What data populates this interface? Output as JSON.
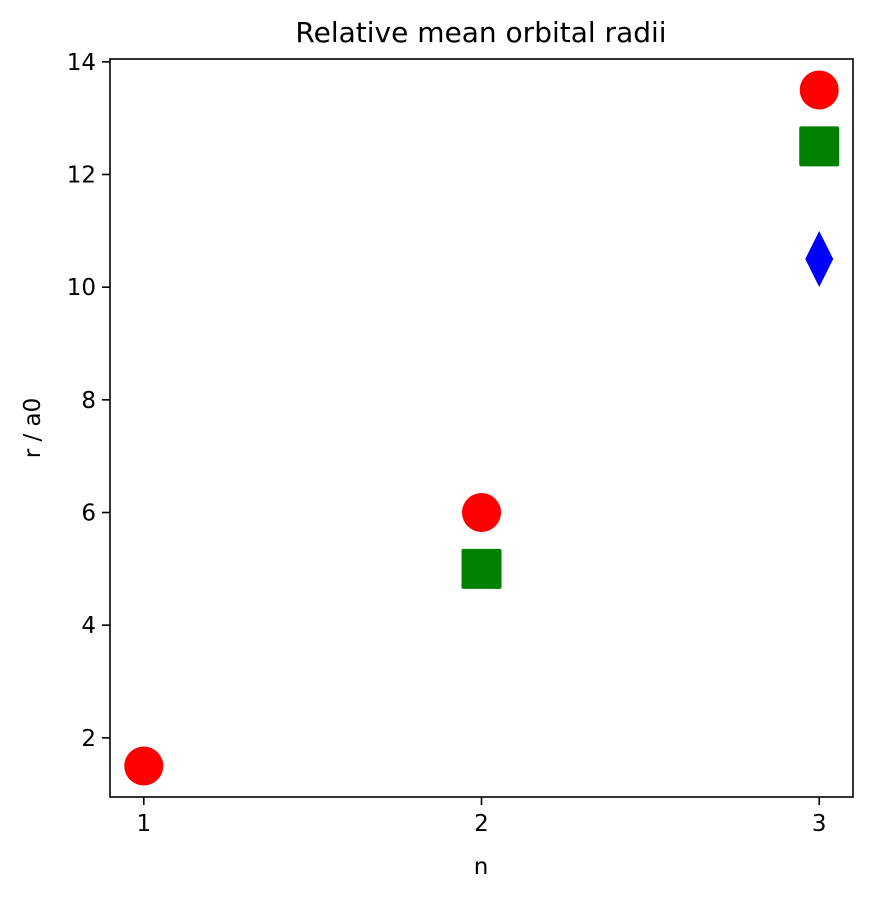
{
  "chart_data": {
    "type": "scatter",
    "title": "Relative mean orbital radii",
    "xlabel": "n",
    "ylabel": "r / a0",
    "xlim": [
      0.9,
      3.1
    ],
    "ylim": [
      0.95,
      14.05
    ],
    "xticks": [
      1,
      2,
      3
    ],
    "yticks": [
      2,
      4,
      6,
      8,
      10,
      12,
      14
    ],
    "grid": false,
    "series": [
      {
        "marker": "circle",
        "color": "#ff0000",
        "points": [
          {
            "x": 1,
            "y": 1.5
          },
          {
            "x": 2,
            "y": 6.0
          },
          {
            "x": 3,
            "y": 13.5
          }
        ]
      },
      {
        "marker": "square",
        "color": "#008000",
        "points": [
          {
            "x": 2,
            "y": 5.0
          },
          {
            "x": 3,
            "y": 12.5
          }
        ]
      },
      {
        "marker": "diamond",
        "color": "#0000ff",
        "points": [
          {
            "x": 3,
            "y": 10.5
          }
        ]
      }
    ]
  }
}
